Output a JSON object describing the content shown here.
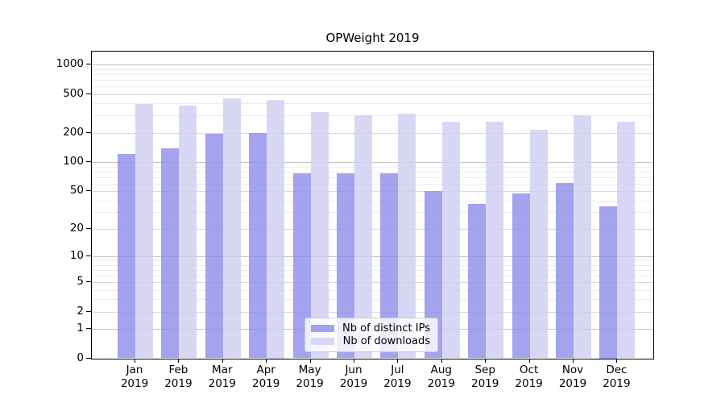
{
  "chart_data": {
    "type": "bar",
    "title": "OPWeight 2019",
    "categories": [
      "Jan 2019",
      "Feb 2019",
      "Mar 2019",
      "Apr 2019",
      "May 2019",
      "Jun 2019",
      "Jul 2019",
      "Aug 2019",
      "Sep 2019",
      "Oct 2019",
      "Nov 2019",
      "Dec 2019"
    ],
    "series": [
      {
        "name": "Nb of distinct IPs",
        "color": "#8c8cea",
        "alpha": 0.8,
        "values": [
          122,
          139,
          194,
          200,
          76,
          76,
          77,
          50,
          37,
          47,
          61,
          35
        ]
      },
      {
        "name": "Nb of downloads",
        "color": "#cecef3",
        "alpha": 0.8,
        "values": [
          394,
          382,
          452,
          438,
          326,
          300,
          316,
          261,
          258,
          216,
          302,
          261
        ]
      }
    ],
    "yscale": "symlog",
    "yticks": [
      0,
      1,
      2,
      5,
      10,
      20,
      50,
      100,
      200,
      500,
      1000
    ],
    "ylim": [
      0,
      1350
    ],
    "xlabel": "",
    "ylabel": "",
    "grid": true,
    "grid_colors": {
      "major": "#c3c3c3",
      "labeled_minor": "#d9d9d9",
      "minor": "#ededed"
    },
    "legend_position": "lower center",
    "legend_labels": [
      "Nb of distinct IPs",
      "Nb of downloads"
    ]
  }
}
